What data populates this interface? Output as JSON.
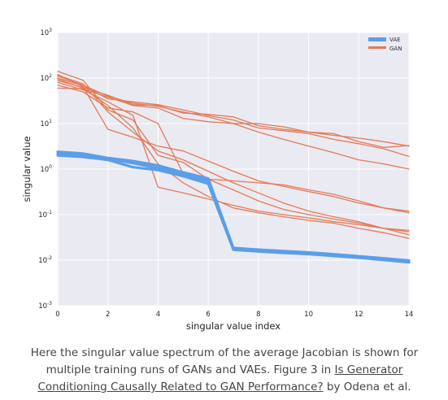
{
  "chart_data": {
    "type": "line",
    "xlabel": "singular value index",
    "ylabel": "singular value",
    "x_ticks": [
      0,
      2,
      4,
      6,
      8,
      10,
      12,
      14
    ],
    "y_ticks": [
      {
        "value": 0.001,
        "base": "10",
        "exp": "-3"
      },
      {
        "value": 0.01,
        "base": "10",
        "exp": "-2"
      },
      {
        "value": 0.1,
        "base": "10",
        "exp": "-1"
      },
      {
        "value": 1,
        "base": "10",
        "exp": "0"
      },
      {
        "value": 10,
        "base": "10",
        "exp": "1"
      },
      {
        "value": 100,
        "base": "10",
        "exp": "2"
      },
      {
        "value": 1000,
        "base": "10",
        "exp": "3"
      }
    ],
    "xlim": [
      0,
      14
    ],
    "ylim": [
      0.001,
      1000
    ],
    "y_scale": "log",
    "grid": true,
    "legend_position": "top-right",
    "legend": [
      {
        "label": "VAE",
        "color": "#5b9ee8"
      },
      {
        "label": "GAN",
        "color": "#e47a56"
      }
    ],
    "x": [
      0,
      1,
      2,
      3,
      4,
      5,
      6,
      7,
      8,
      9,
      10,
      11,
      12,
      13,
      14
    ],
    "series": [
      {
        "group": "GAN",
        "values": [
          140,
          90,
          20,
          12,
          2.0,
          1.4,
          0.6,
          0.35,
          0.2,
          0.13,
          0.1,
          0.08,
          0.065,
          0.05,
          0.042
        ]
      },
      {
        "group": "GAN",
        "values": [
          115,
          75,
          18,
          6.5,
          2.5,
          1.6,
          0.9,
          0.5,
          0.3,
          0.18,
          0.12,
          0.09,
          0.07,
          0.05,
          0.036
        ]
      },
      {
        "group": "GAN",
        "values": [
          95,
          60,
          25,
          8.0,
          1.3,
          0.5,
          0.25,
          0.14,
          0.11,
          0.09,
          0.075,
          0.065,
          0.05,
          0.04,
          0.03
        ]
      },
      {
        "group": "GAN",
        "values": [
          80,
          55,
          30,
          15,
          0.4,
          0.3,
          0.22,
          0.16,
          0.12,
          0.1,
          0.085,
          0.07,
          0.06,
          0.05,
          0.045
        ]
      },
      {
        "group": "GAN",
        "values": [
          120,
          65,
          7.5,
          5.0,
          3.2,
          2.5,
          1.5,
          0.9,
          0.55,
          0.42,
          0.32,
          0.25,
          0.18,
          0.14,
          0.11
        ]
      },
      {
        "group": "GAN",
        "values": [
          70,
          50,
          22,
          18,
          10,
          0.8,
          0.6,
          0.55,
          0.5,
          0.45,
          0.35,
          0.28,
          0.2,
          0.14,
          0.12
        ]
      },
      {
        "group": "GAN",
        "values": [
          110,
          70,
          40,
          28,
          24,
          18,
          14,
          10,
          6.5,
          4.5,
          3.2,
          2.3,
          1.6,
          1.3,
          1.0
        ]
      },
      {
        "group": "GAN",
        "values": [
          88,
          62,
          42,
          26,
          25,
          17,
          16,
          14,
          9.0,
          7.5,
          6.5,
          5.5,
          4.8,
          4.0,
          3.2
        ]
      },
      {
        "group": "GAN",
        "values": [
          100,
          68,
          35,
          30,
          26,
          20,
          15,
          12,
          8.0,
          7.0,
          6.0,
          4.5,
          3.6,
          2.8,
          1.9
        ]
      },
      {
        "group": "GAN",
        "values": [
          60,
          58,
          38,
          25,
          22,
          13,
          11,
          10,
          10,
          8.5,
          6.5,
          6.0,
          4.0,
          3.0,
          3.3
        ]
      },
      {
        "group": "VAE",
        "values": [
          2.4,
          2.2,
          1.75,
          1.5,
          1.2,
          0.85,
          0.62,
          0.0185,
          0.017,
          0.0158,
          0.0148,
          0.0135,
          0.0122,
          0.011,
          0.0098
        ]
      },
      {
        "group": "VAE",
        "values": [
          2.2,
          2.0,
          1.7,
          1.35,
          1.05,
          0.78,
          0.55,
          0.0178,
          0.0162,
          0.015,
          0.014,
          0.0128,
          0.0117,
          0.0105,
          0.0094
        ]
      },
      {
        "group": "VAE",
        "values": [
          2.0,
          1.85,
          1.6,
          1.1,
          0.95,
          0.7,
          0.48,
          0.017,
          0.0155,
          0.0145,
          0.0136,
          0.0124,
          0.0113,
          0.0101,
          0.009
        ]
      }
    ]
  },
  "caption": {
    "text_before": "Here the singular value spectrum of the average Jacobian is shown for multiple training runs of GANs and VAEs. Figure 3 in ",
    "link": "Is Generator Conditioning Causally Related to GAN Performance?",
    "text_after": " by Odena et al."
  }
}
